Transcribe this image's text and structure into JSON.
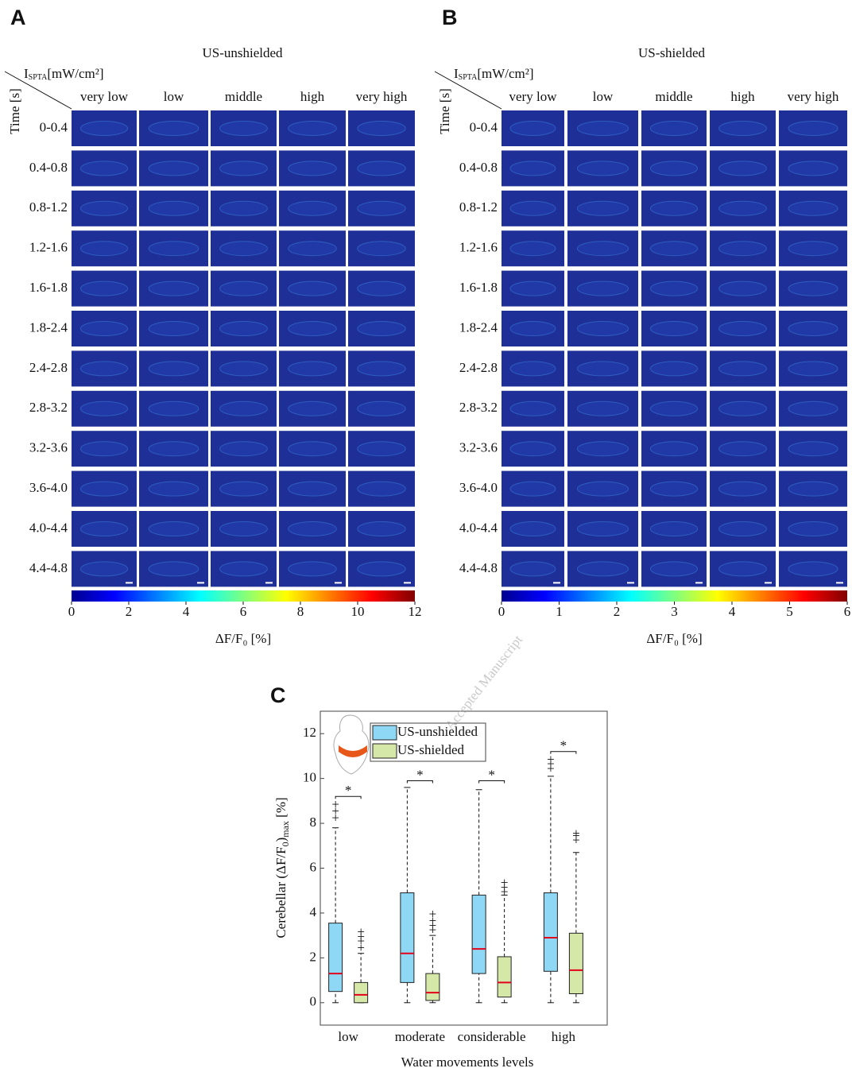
{
  "panels": [
    {
      "label": "A",
      "title": "US-unshielded",
      "corner_label": {
        "symbol": "I",
        "subscript": "SPTA",
        "unit": "[mW/cm²]"
      },
      "time_label": "Time [s]",
      "columns": [
        "very low",
        "low",
        "middle",
        "high",
        "very high"
      ],
      "rows": [
        "0-0.4",
        "0.4-0.8",
        "0.8-1.2",
        "1.2-1.6",
        "1.6-1.8",
        "1.8-2.4",
        "2.4-2.8",
        "2.8-3.2",
        "3.2-3.6",
        "3.6-4.0",
        "4.0-4.4",
        "4.4-4.8"
      ],
      "colorbar": {
        "colormap": "jet",
        "lim": [
          0,
          12
        ],
        "ticks": [
          0,
          2,
          4,
          6,
          8,
          10,
          12
        ],
        "label": "ΔF/F₀ [%]"
      }
    },
    {
      "label": "B",
      "title": "US-shielded",
      "corner_label": {
        "symbol": "I",
        "subscript": "SPTA",
        "unit": "[mW/cm²]"
      },
      "time_label": "Time [s]",
      "columns": [
        "very low",
        "low",
        "middle",
        "high",
        "very high"
      ],
      "rows": [
        "0-0.4",
        "0.4-0.8",
        "0.8-1.2",
        "1.2-1.6",
        "1.6-1.8",
        "1.8-2.4",
        "2.4-2.8",
        "2.8-3.2",
        "3.2-3.6",
        "3.6-4.0",
        "4.0-4.4",
        "4.4-4.8"
      ],
      "colorbar": {
        "colormap": "jet",
        "lim": [
          0,
          6
        ],
        "ticks": [
          0,
          1,
          2,
          3,
          4,
          5,
          6
        ],
        "label": "ΔF/F₀ [%]"
      }
    }
  ],
  "chart_data": {
    "type": "box",
    "panel_label": "C",
    "categories": [
      "low",
      "moderate",
      "considerable",
      "high"
    ],
    "xlabel": "Water movements levels",
    "ylabel": {
      "main": "Cerebellar (ΔF/F",
      "sub1": "0",
      "close": ")",
      "sub2": "max",
      "unit": " [%]"
    },
    "ylim": [
      -1,
      13
    ],
    "yticks": [
      0,
      2,
      4,
      6,
      8,
      10,
      12
    ],
    "legend": "upper left",
    "median_color": "#e3001b",
    "series": [
      {
        "name": "US-unshielded",
        "color": "#8fd8f5",
        "boxes": [
          {
            "min": 0,
            "q1": 0.5,
            "median": 1.3,
            "q3": 3.55,
            "max": 7.8,
            "outliers": [
              8.2,
              8.5,
              8.8
            ]
          },
          {
            "min": 0,
            "q1": 0.9,
            "median": 2.2,
            "q3": 4.9,
            "max": 9.6,
            "outliers": []
          },
          {
            "min": 0,
            "q1": 1.3,
            "median": 2.4,
            "q3": 4.8,
            "max": 9.5,
            "outliers": []
          },
          {
            "min": 0,
            "q1": 1.4,
            "median": 2.9,
            "q3": 4.9,
            "max": 10.1,
            "outliers": [
              10.4,
              10.6,
              10.8
            ]
          }
        ]
      },
      {
        "name": "US-shielded",
        "color": "#d6e8a8",
        "boxes": [
          {
            "min": 0,
            "q1": 0,
            "median": 0.35,
            "q3": 0.9,
            "max": 2.2,
            "outliers": [
              2.4,
              2.7,
              2.9,
              3.1
            ]
          },
          {
            "min": 0,
            "q1": 0.1,
            "median": 0.45,
            "q3": 1.3,
            "max": 3.0,
            "outliers": [
              3.2,
              3.4,
              3.6,
              3.9
            ]
          },
          {
            "min": 0,
            "q1": 0.25,
            "median": 0.9,
            "q3": 2.05,
            "max": 4.8,
            "outliers": [
              4.9,
              5.1,
              5.3
            ]
          },
          {
            "min": 0,
            "q1": 0.4,
            "median": 1.45,
            "q3": 3.1,
            "max": 6.7,
            "outliers": [
              7.2,
              7.4,
              7.5
            ]
          }
        ]
      }
    ],
    "annotations": [
      {
        "text": "*",
        "y": 9.2
      },
      {
        "text": "*",
        "y": 9.9
      },
      {
        "text": "*",
        "y": 9.9
      },
      {
        "text": "*",
        "y": 11.2
      }
    ]
  },
  "watermark": "Accepted Manuscript"
}
